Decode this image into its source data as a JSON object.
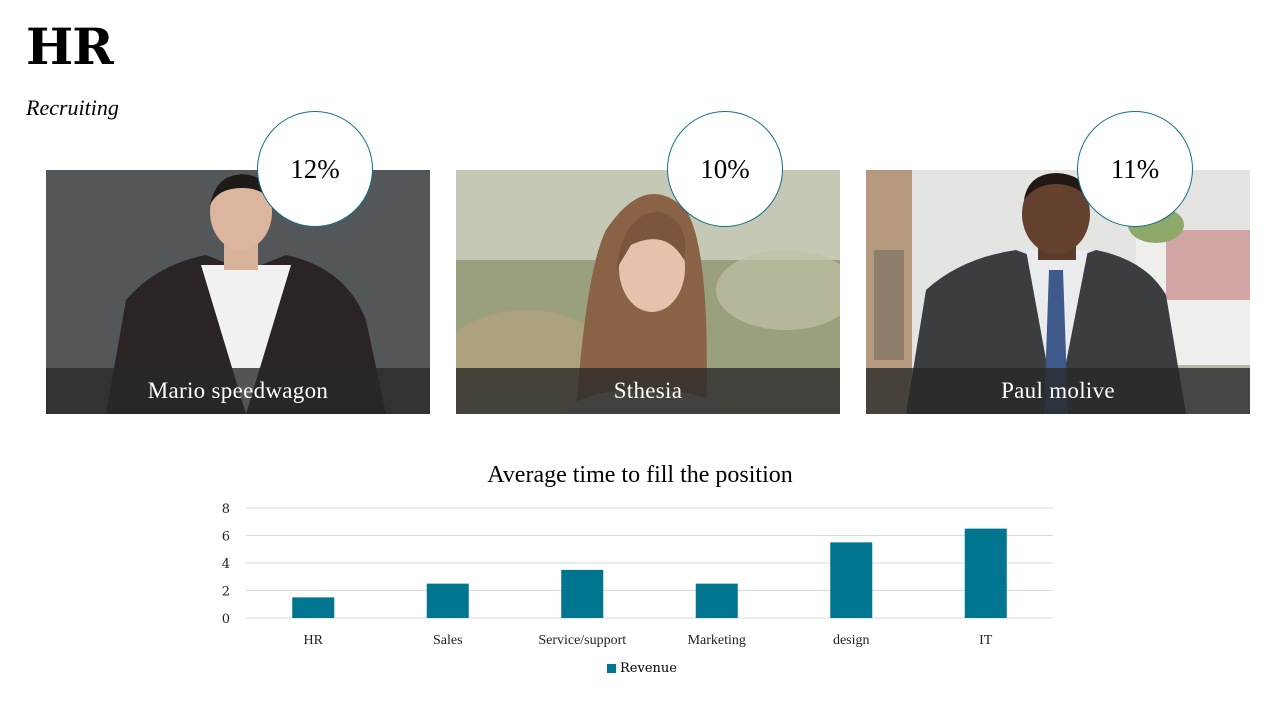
{
  "header": {
    "title": "HR",
    "subtitle": "Recruiting"
  },
  "people": [
    {
      "name": "Mario speedwagon",
      "percent": "12%"
    },
    {
      "name": "Sthesia",
      "percent": "10%"
    },
    {
      "name": "Paul molive",
      "percent": "11%"
    }
  ],
  "colors": {
    "accent": "#00758f",
    "circle_border": "#0f7189",
    "caption_bg": "#333333"
  },
  "chart_data": {
    "type": "bar",
    "title": "Average time to fill the position",
    "categories": [
      "HR",
      "Sales",
      "Service/support",
      "Marketing",
      "design",
      "IT"
    ],
    "series": [
      {
        "name": "Revenue",
        "values": [
          1.5,
          2.5,
          3.5,
          2.5,
          5.5,
          6.5
        ]
      }
    ],
    "yticks": [
      "0",
      "2",
      "4",
      "6",
      "8"
    ],
    "ylim": [
      0,
      8
    ],
    "grid": true,
    "legend": "bottom"
  }
}
